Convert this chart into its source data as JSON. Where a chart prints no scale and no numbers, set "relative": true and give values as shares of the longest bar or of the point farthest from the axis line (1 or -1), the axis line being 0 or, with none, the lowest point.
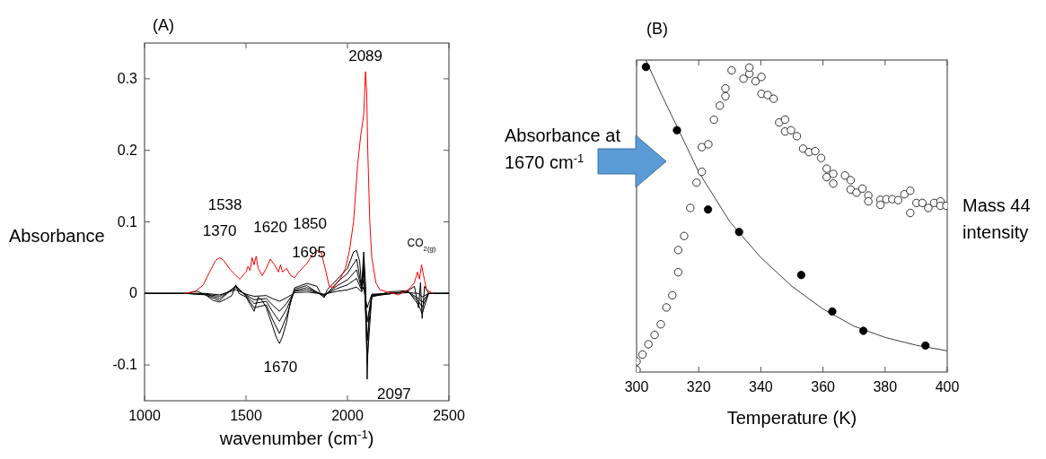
{
  "chart_data": [
    {
      "type": "line",
      "title": "(A)",
      "xlabel": "wavenumber (cm$^{-1}$)",
      "ylabel": "Absorbance",
      "xlim": [
        1000,
        2500
      ],
      "xticks": [
        1000,
        1500,
        2000,
        2500
      ],
      "ylim": [
        -0.15,
        0.35
      ],
      "yticks": [
        -0.1,
        0,
        0.1,
        0.2,
        0.3
      ],
      "grid": false,
      "line_style": "solid",
      "series": [
        {
          "color": "#000000",
          "x": [
            1000,
            1200,
            1300,
            1370,
            1450,
            1500,
            1540,
            1600,
            1630,
            1665,
            1700,
            1740,
            1800,
            1885,
            1950,
            2000,
            2045,
            2070,
            2080,
            2097,
            2120,
            2300,
            2350,
            2368,
            2400,
            2500
          ],
          "values": [
            0,
            0,
            0,
            -0.002,
            0.005,
            -0.001,
            -0.004,
            -0.003,
            -0.007,
            -0.011,
            -0.006,
            0.001,
            0.002,
            -0.001,
            0.003,
            0.005,
            0.009,
            0.002,
            0.009,
            -0.02,
            -0.001,
            0.001,
            0,
            -0.005,
            0,
            0
          ]
        },
        {
          "color": "#000000",
          "x": [
            1000,
            1200,
            1300,
            1370,
            1450,
            1500,
            1540,
            1600,
            1630,
            1665,
            1700,
            1740,
            1800,
            1885,
            1950,
            2000,
            2045,
            2070,
            2080,
            2097,
            2120,
            2300,
            2350,
            2368,
            2400,
            2500
          ],
          "values": [
            0,
            0,
            -0.001,
            -0.004,
            0.008,
            -0.002,
            -0.009,
            -0.007,
            -0.016,
            -0.025,
            -0.014,
            0.003,
            0.005,
            -0.002,
            0.007,
            0.012,
            0.021,
            0.004,
            0.02,
            -0.04,
            -0.002,
            0.002,
            -0.007,
            -0.012,
            0,
            0
          ]
        },
        {
          "color": "#000000",
          "x": [
            1000,
            1200,
            1300,
            1370,
            1450,
            1500,
            1540,
            1600,
            1630,
            1665,
            1700,
            1740,
            1800,
            1885,
            1950,
            2000,
            2045,
            2070,
            2080,
            2097,
            2120,
            2300,
            2350,
            2368,
            2400,
            2500
          ],
          "values": [
            0,
            0,
            -0.001,
            -0.007,
            0.01,
            -0.003,
            -0.014,
            -0.011,
            -0.025,
            -0.039,
            -0.022,
            0.004,
            0.008,
            -0.003,
            0.011,
            0.019,
            0.033,
            0.006,
            0.032,
            -0.066,
            -0.003,
            0.002,
            -0.011,
            -0.019,
            0,
            0
          ]
        },
        {
          "color": "#000000",
          "x": [
            1000,
            1200,
            1300,
            1370,
            1450,
            1500,
            1540,
            1600,
            1630,
            1665,
            1700,
            1740,
            1800,
            1885,
            1950,
            2000,
            2045,
            2070,
            2080,
            2097,
            2120,
            2300,
            2350,
            2368,
            2400,
            2500
          ],
          "values": [
            0,
            0,
            -0.002,
            -0.01,
            0.011,
            -0.004,
            -0.02,
            -0.016,
            -0.036,
            -0.056,
            -0.032,
            0.006,
            0.011,
            -0.005,
            0.016,
            0.028,
            0.048,
            0.008,
            0.046,
            -0.096,
            -0.004,
            0.003,
            -0.016,
            -0.028,
            0,
            0
          ]
        },
        {
          "color": "#000000",
          "x": [
            1000,
            1100,
            1200,
            1260,
            1300,
            1340,
            1370,
            1400,
            1430,
            1450,
            1465,
            1500,
            1520,
            1540,
            1560,
            1580,
            1600,
            1630,
            1650,
            1665,
            1680,
            1700,
            1720,
            1740,
            1800,
            1850,
            1870,
            1885,
            1900,
            1950,
            2000,
            2030,
            2045,
            2060,
            2070,
            2080,
            2090,
            2097,
            2105,
            2120,
            2200,
            2300,
            2330,
            2350,
            2360,
            2368,
            2380,
            2400,
            2500
          ],
          "values": [
            0,
            0,
            0,
            0.003,
            -0.002,
            -0.01,
            -0.012,
            -0.008,
            -0.003,
            0.012,
            0,
            -0.005,
            -0.015,
            -0.025,
            -0.005,
            -0.01,
            -0.02,
            -0.045,
            -0.062,
            -0.07,
            -0.06,
            -0.04,
            -0.01,
            0.008,
            0.014,
            0.01,
            -0.002,
            -0.006,
            0.005,
            0.02,
            0.035,
            0.058,
            0.06,
            0.045,
            0.01,
            0.058,
            0.01,
            -0.12,
            -0.03,
            -0.005,
            0.002,
            0.004,
            0.01,
            -0.02,
            0.015,
            -0.035,
            0.01,
            0,
            0
          ]
        },
        {
          "color": "#ff0000",
          "x": [
            1200,
            1250,
            1290,
            1320,
            1350,
            1370,
            1390,
            1420,
            1450,
            1470,
            1500,
            1510,
            1520,
            1530,
            1540,
            1550,
            1560,
            1580,
            1600,
            1620,
            1640,
            1660,
            1670,
            1680,
            1700,
            1720,
            1740,
            1760,
            1800,
            1830,
            1850,
            1870,
            1890,
            1910,
            1930,
            1960,
            1990,
            2010,
            2030,
            2050,
            2065,
            2080,
            2089,
            2095,
            2100,
            2110,
            2120,
            2140,
            2160,
            2200,
            2250,
            2300,
            2330,
            2345,
            2355,
            2365,
            2375,
            2390,
            2420
          ],
          "values": [
            0,
            0.003,
            0.012,
            0.03,
            0.046,
            0.05,
            0.046,
            0.034,
            0.025,
            0.02,
            0.03,
            0.038,
            0.032,
            0.05,
            0.04,
            0.052,
            0.035,
            0.025,
            0.035,
            0.048,
            0.04,
            0.03,
            0.04,
            0.03,
            0.035,
            0.025,
            0.022,
            0.03,
            0.042,
            0.055,
            0.06,
            0.058,
            0.035,
            0.01,
            0.008,
            0.018,
            0.035,
            0.06,
            0.1,
            0.18,
            0.22,
            0.25,
            0.31,
            0.28,
            0.2,
            0.1,
            0.05,
            0.015,
            0.005,
            0.002,
            -0.002,
            0.005,
            0.015,
            0.03,
            0.02,
            0.04,
            0.025,
            0.005,
            0
          ]
        }
      ],
      "annotations": [
        {
          "text": "1370",
          "x": 1370,
          "y": 0.05
        },
        {
          "text": "1538",
          "x": 1538,
          "y": 0.052
        },
        {
          "text": "1620",
          "x": 1620,
          "y": 0.048
        },
        {
          "text": "1695",
          "x": 1695,
          "y": 0.04
        },
        {
          "text": "1850",
          "x": 1850,
          "y": 0.06
        },
        {
          "text": "2089",
          "x": 2089,
          "y": 0.31
        },
        {
          "text": "1670",
          "x": 1670,
          "y": -0.07
        },
        {
          "text": "2097",
          "x": 2097,
          "y": -0.12
        },
        {
          "text": "CO$_{2(g)}$",
          "x": 2365,
          "y": 0.04
        }
      ]
    },
    {
      "type": "scatter",
      "title": "(B)",
      "xlabel": "Temperature (K)",
      "ylabel": "Absorbance at 1670 cm$^{-1}$",
      "y2label": "Mass 44 intensity",
      "xlim": [
        300,
        400
      ],
      "xticks": [
        300,
        320,
        340,
        360,
        380,
        400
      ],
      "relative": true,
      "grid": false,
      "marker": "circle",
      "series": [
        {
          "type": "line",
          "marker": "none",
          "color": "#404040",
          "x": [
            303,
            308,
            313,
            320,
            330,
            340,
            350,
            360,
            370,
            380,
            390,
            400
          ],
          "values": [
            1.0,
            0.89,
            0.787,
            0.641,
            0.482,
            0.367,
            0.275,
            0.202,
            0.147,
            0.111,
            0.086,
            0.068
          ]
        },
        {
          "color": "#000000",
          "x": [
            303,
            313,
            323,
            333,
            353,
            363,
            373,
            393
          ],
          "values": [
            0.978,
            0.775,
            0.521,
            0.449,
            0.311,
            0.194,
            0.132,
            0.085
          ]
        },
        {
          "color": "#ffffff",
          "x": [
            300,
            300,
            301.9,
            303.8,
            305.8,
            307.8,
            309.6,
            311.5,
            313.4,
            313.4,
            315.3,
            317.3,
            319.3,
            321.0,
            321.0,
            323.1,
            324.9,
            326.8,
            328.6,
            328.6,
            330.6,
            334.4,
            336.3,
            336.3,
            338.3,
            340.2,
            340.2,
            342.2,
            344.1,
            345.9,
            347.8,
            347.8,
            349.7,
            351.6,
            353.6,
            355.5,
            357.5,
            359.4,
            361.2,
            361.2,
            363.3,
            363.3,
            367.1,
            368.9,
            368.9,
            370.8,
            372.7,
            374.6,
            374.6,
            378.5,
            378.5,
            380.4,
            382.3,
            384.2,
            386.2,
            388.1,
            388.1,
            390.1,
            392.0,
            393.9,
            395.8,
            397.8,
            397.8,
            399.7
          ],
          "values": [
            0.034,
            0.007,
            0.056,
            0.089,
            0.119,
            0.153,
            0.207,
            0.246,
            0.32,
            0.391,
            0.436,
            0.526,
            0.607,
            0.642,
            0.721,
            0.73,
            0.809,
            0.854,
            0.884,
            0.909,
            0.967,
            0.94,
            0.956,
            0.976,
            0.932,
            0.946,
            0.892,
            0.888,
            0.876,
            0.8,
            0.809,
            0.771,
            0.775,
            0.756,
            0.716,
            0.705,
            0.708,
            0.686,
            0.652,
            0.625,
            0.635,
            0.604,
            0.63,
            0.615,
            0.585,
            0.575,
            0.588,
            0.566,
            0.547,
            0.552,
            0.536,
            0.554,
            0.554,
            0.551,
            0.57,
            0.581,
            0.51,
            0.542,
            0.542,
            0.526,
            0.542,
            0.547,
            0.533,
            0.533
          ]
        }
      ]
    }
  ]
}
